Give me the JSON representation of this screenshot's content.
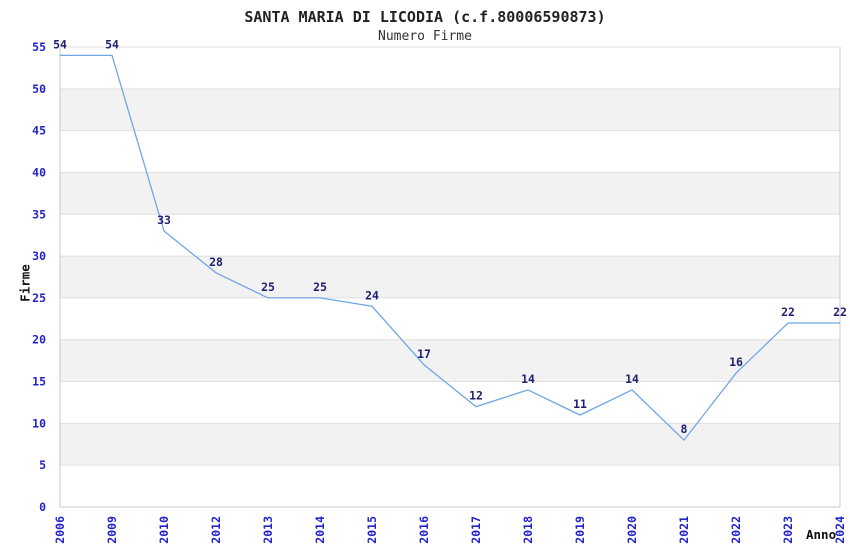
{
  "page": {
    "background": "#ffffff"
  },
  "chart_data": {
    "type": "line",
    "title": "SANTA MARIA DI LICODIA (c.f.80006590873)",
    "subtitle": "Numero Firme",
    "xlabel": "Anno",
    "ylabel": "Firme",
    "categories": [
      "2006",
      "2009",
      "2010",
      "2012",
      "2013",
      "2014",
      "2015",
      "2016",
      "2017",
      "2018",
      "2019",
      "2020",
      "2021",
      "2022",
      "2023",
      "2024"
    ],
    "values": [
      54,
      54,
      33,
      28,
      25,
      25,
      24,
      17,
      12,
      14,
      11,
      14,
      8,
      16,
      22,
      22
    ],
    "ylim": [
      0,
      55
    ],
    "ytick_step": 5,
    "yticks": [
      0,
      5,
      10,
      15,
      20,
      25,
      30,
      35,
      40,
      45,
      50,
      55
    ],
    "grid": "horizontal-alternating-bands",
    "legend_position": "none",
    "data_labels": "above-points",
    "x_tick_rotation": 90,
    "colors": {
      "line": "#6FA7E4",
      "tick_label": "#2222CC",
      "data_label": "#1F2170",
      "band_fill": "#F2F2F2",
      "gridline": "#E0E0E0",
      "spine": "#C9C9C9",
      "title": "#222222",
      "subtitle": "#333333",
      "axis_title": "#111111",
      "background": "#FFFFFF"
    }
  }
}
